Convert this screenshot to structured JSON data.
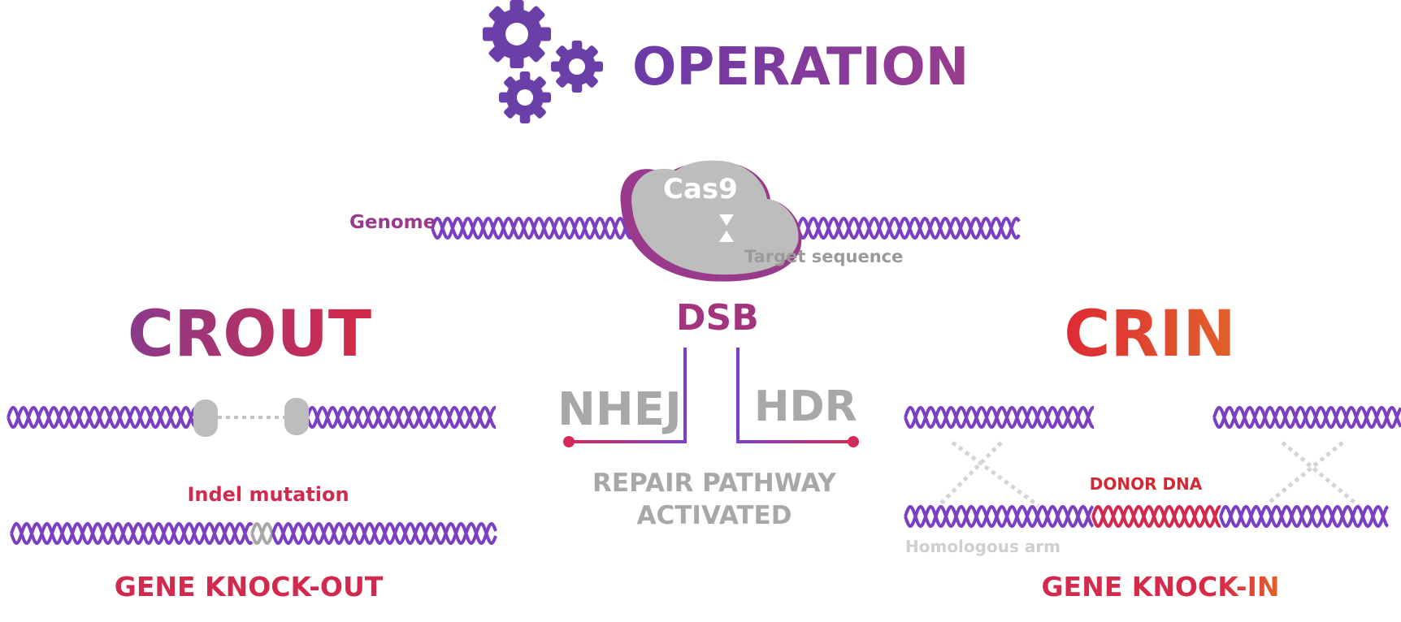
{
  "title": "OPERATION",
  "top": {
    "genome_label": "Genome",
    "cas9_label": "Cas9",
    "target_label": "Target sequence",
    "dsb_label": "DSB"
  },
  "repair": {
    "nhej": "NHEJ",
    "hdr": "HDR",
    "caption_line1": "REPAIR PATHWAY",
    "caption_line2": "ACTIVATED"
  },
  "crout": {
    "heading": "CROUT",
    "indel_label": "Indel mutation",
    "result": "GENE KNOCK-OUT"
  },
  "crin": {
    "heading": "CRIN",
    "donor_label": "DONOR DNA",
    "arm_label": "Homologous arm",
    "result": "GENE KNOCK-IN"
  },
  "colors": {
    "purple": "#6b3fa8",
    "helix": "#7b3fc4",
    "magenta": "#a3347e",
    "crimson": "#d22a4f",
    "orange": "#e2622a",
    "grey": "#a8a8a8",
    "light_grey": "#d2d2d2"
  },
  "icons": [
    "gears-icon"
  ]
}
